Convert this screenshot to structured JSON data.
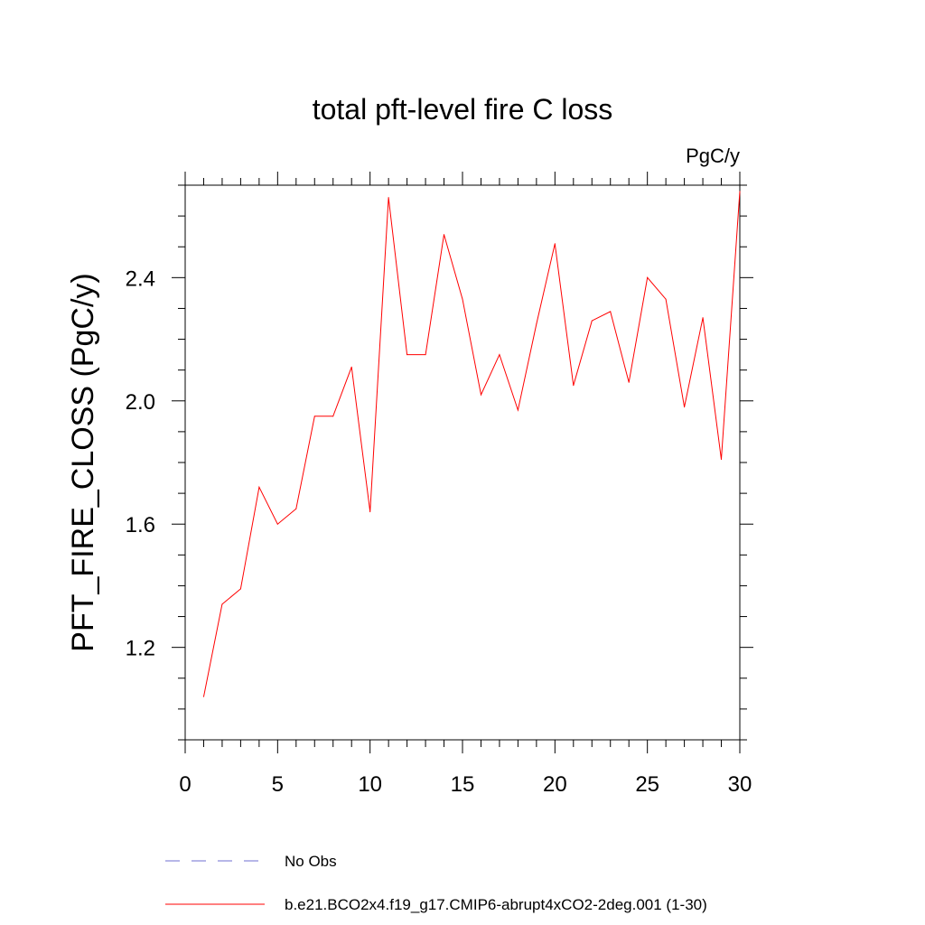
{
  "chart_data": {
    "type": "line",
    "title": "total pft-level fire C loss",
    "units": "PgC/y",
    "xlabel": "",
    "ylabel": "PFT_FIRE_CLOSS  (PgC/y)",
    "xlim": [
      0,
      30
    ],
    "ylim": [
      0.9,
      2.7
    ],
    "xticks": [
      0,
      5,
      10,
      15,
      20,
      25,
      30
    ],
    "xtick_labels": [
      "0",
      "5",
      "10",
      "15",
      "20",
      "25",
      "30"
    ],
    "yticks": [
      1.2,
      1.6,
      2.0,
      2.4
    ],
    "ytick_labels": [
      "1.2",
      "1.6",
      "2.0",
      "2.4"
    ],
    "grid": false,
    "series": [
      {
        "name": "b.e21.BCO2x4.f19_g17.CMIP6-abrupt4xCO2-2deg.001 (1-30)",
        "color": "#ff0000",
        "style": "solid",
        "x": [
          1,
          2,
          3,
          4,
          5,
          6,
          7,
          8,
          9,
          10,
          11,
          12,
          13,
          14,
          15,
          16,
          17,
          18,
          19,
          20,
          21,
          22,
          23,
          24,
          25,
          26,
          27,
          28,
          29,
          30
        ],
        "values": [
          1.04,
          1.34,
          1.39,
          1.72,
          1.6,
          1.65,
          1.95,
          1.95,
          2.11,
          1.64,
          2.66,
          2.15,
          2.15,
          2.54,
          2.33,
          2.02,
          2.15,
          1.97,
          2.25,
          2.51,
          2.05,
          2.26,
          2.29,
          2.06,
          2.4,
          2.33,
          1.98,
          2.27,
          1.81,
          2.68
        ]
      }
    ],
    "legend": {
      "placement": "bottom",
      "entries": [
        {
          "label": "No Obs",
          "color": "#6f6fd0",
          "style": "dashed"
        },
        {
          "label": "b.e21.BCO2x4.f19_g17.CMIP6-abrupt4xCO2-2deg.001 (1-30)",
          "color": "#ff0000",
          "style": "solid"
        }
      ]
    }
  }
}
